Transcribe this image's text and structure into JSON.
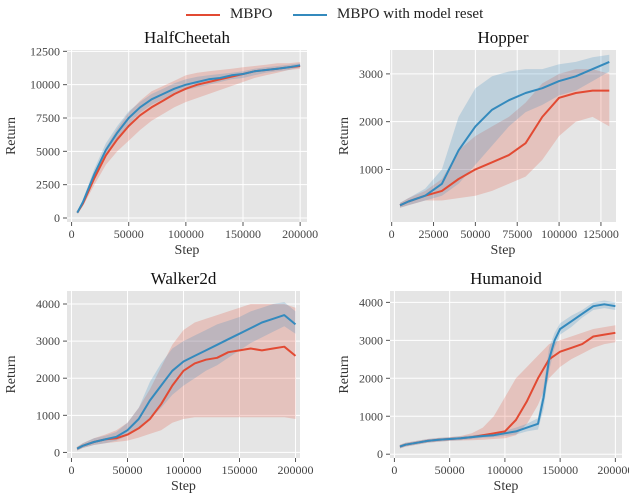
{
  "colors": {
    "MBPO": "#e24a33",
    "MBPO with model reset": "#348abd",
    "panel_bg": "#e5e5e5",
    "grid": "#ffffff"
  },
  "legend": [
    {
      "label": "MBPO",
      "color": "#e24a33"
    },
    {
      "label": "MBPO with model reset",
      "color": "#348abd"
    }
  ],
  "chart_data": [
    {
      "type": "line",
      "title": "HalfCheetah",
      "xlabel": "Step",
      "ylabel": "Return",
      "xlim": [
        -4000,
        206000
      ],
      "ylim": [
        -300,
        12600
      ],
      "xticks": [
        0,
        50000,
        100000,
        150000,
        200000
      ],
      "yticks": [
        0,
        2500,
        5000,
        7500,
        10000,
        12500
      ],
      "grid": true,
      "series": [
        {
          "name": "MBPO",
          "x": [
            5000,
            10000,
            20000,
            30000,
            40000,
            50000,
            60000,
            70000,
            80000,
            90000,
            100000,
            110000,
            120000,
            130000,
            140000,
            150000,
            160000,
            170000,
            180000,
            190000,
            200000
          ],
          "y": [
            400,
            1100,
            3000,
            4700,
            5900,
            6900,
            7700,
            8300,
            8800,
            9300,
            9700,
            10000,
            10200,
            10400,
            10600,
            10800,
            11000,
            11100,
            11200,
            11300,
            11400
          ],
          "lower": [
            300,
            900,
            2500,
            4000,
            5000,
            5800,
            6600,
            7300,
            7800,
            8300,
            8700,
            9000,
            9300,
            9600,
            9900,
            10200,
            10500,
            10700,
            10900,
            11100,
            11200
          ],
          "upper": [
            500,
            1300,
            3400,
            5300,
            6700,
            7900,
            8800,
            9500,
            9900,
            10300,
            10700,
            10900,
            11000,
            11100,
            11200,
            11300,
            11400,
            11500,
            11600,
            11600,
            11700
          ]
        },
        {
          "name": "MBPO with model reset",
          "x": [
            5000,
            10000,
            20000,
            30000,
            40000,
            50000,
            60000,
            70000,
            80000,
            90000,
            100000,
            110000,
            120000,
            130000,
            140000,
            150000,
            160000,
            170000,
            180000,
            190000,
            200000
          ],
          "y": [
            400,
            1200,
            3300,
            5100,
            6400,
            7500,
            8300,
            8900,
            9300,
            9700,
            10000,
            10200,
            10400,
            10500,
            10700,
            10800,
            11000,
            11100,
            11200,
            11300,
            11450
          ],
          "lower": [
            300,
            1000,
            2900,
            4600,
            5900,
            7000,
            7900,
            8500,
            8900,
            9300,
            9600,
            9800,
            10000,
            10200,
            10400,
            10500,
            10700,
            10900,
            11000,
            11100,
            11300
          ],
          "upper": [
            500,
            1400,
            3700,
            5600,
            6900,
            8000,
            8700,
            9300,
            9700,
            10100,
            10400,
            10600,
            10700,
            10800,
            10900,
            11000,
            11200,
            11300,
            11400,
            11500,
            11600
          ]
        }
      ]
    },
    {
      "type": "line",
      "title": "Hopper",
      "xlabel": "Step",
      "ylabel": "Return",
      "xlim": [
        -1000,
        134000
      ],
      "ylim": [
        -100,
        3500
      ],
      "xticks": [
        0,
        25000,
        50000,
        75000,
        100000,
        125000
      ],
      "yticks": [
        1000,
        2000,
        3000
      ],
      "grid": true,
      "series": [
        {
          "name": "MBPO",
          "x": [
            5000,
            10000,
            20000,
            30000,
            40000,
            50000,
            60000,
            70000,
            80000,
            90000,
            100000,
            110000,
            120000,
            130000
          ],
          "y": [
            250,
            330,
            450,
            550,
            800,
            1000,
            1150,
            1300,
            1550,
            2100,
            2500,
            2600,
            2650,
            2650
          ],
          "lower": [
            200,
            250,
            350,
            350,
            400,
            450,
            550,
            700,
            850,
            1200,
            1700,
            2000,
            2100,
            1900
          ],
          "upper": [
            300,
            400,
            550,
            800,
            1400,
            1700,
            1900,
            2100,
            2400,
            2800,
            3000,
            3100,
            3100,
            3000
          ]
        },
        {
          "name": "MBPO with model reset",
          "x": [
            5000,
            10000,
            20000,
            30000,
            40000,
            50000,
            60000,
            70000,
            80000,
            90000,
            100000,
            110000,
            120000,
            130000
          ],
          "y": [
            250,
            330,
            450,
            700,
            1400,
            1900,
            2250,
            2450,
            2600,
            2700,
            2850,
            2950,
            3100,
            3250
          ],
          "lower": [
            200,
            250,
            350,
            450,
            700,
            1100,
            1500,
            1900,
            2200,
            2350,
            2550,
            2650,
            2850,
            3050
          ],
          "upper": [
            300,
            400,
            600,
            1000,
            2100,
            2700,
            2950,
            3050,
            3100,
            3100,
            3200,
            3250,
            3350,
            3400
          ]
        }
      ]
    },
    {
      "type": "line",
      "title": "Walker2d",
      "xlabel": "Step",
      "ylabel": "Return",
      "xlim": [
        -4000,
        204000
      ],
      "ylim": [
        -150,
        4350
      ],
      "xticks": [
        0,
        50000,
        100000,
        150000,
        200000
      ],
      "yticks": [
        0,
        1000,
        2000,
        3000,
        4000
      ],
      "grid": true,
      "series": [
        {
          "name": "MBPO",
          "x": [
            5000,
            10000,
            20000,
            30000,
            40000,
            50000,
            60000,
            70000,
            80000,
            90000,
            100000,
            110000,
            120000,
            130000,
            140000,
            150000,
            160000,
            170000,
            180000,
            190000,
            200000
          ],
          "y": [
            100,
            180,
            280,
            350,
            380,
            480,
            650,
            900,
            1300,
            1800,
            2200,
            2400,
            2500,
            2550,
            2700,
            2750,
            2800,
            2750,
            2800,
            2850,
            2600
          ],
          "lower": [
            50,
            120,
            200,
            250,
            280,
            320,
            400,
            500,
            600,
            800,
            900,
            950,
            950,
            950,
            950,
            950,
            950,
            950,
            950,
            950,
            900
          ],
          "upper": [
            150,
            250,
            380,
            480,
            600,
            800,
            1200,
            1700,
            2300,
            2900,
            3300,
            3500,
            3600,
            3700,
            3800,
            3900,
            4000,
            4000,
            4000,
            4000,
            3900
          ]
        },
        {
          "name": "MBPO with model reset",
          "x": [
            5000,
            10000,
            20000,
            30000,
            40000,
            50000,
            60000,
            70000,
            80000,
            90000,
            100000,
            110000,
            120000,
            130000,
            140000,
            150000,
            160000,
            170000,
            180000,
            190000,
            200000
          ],
          "y": [
            100,
            180,
            280,
            350,
            420,
            600,
            900,
            1400,
            1800,
            2200,
            2450,
            2600,
            2750,
            2900,
            3050,
            3200,
            3350,
            3500,
            3600,
            3700,
            3450
          ],
          "lower": [
            50,
            120,
            200,
            250,
            320,
            450,
            650,
            900,
            1200,
            1550,
            1800,
            2000,
            2200,
            2350,
            2550,
            2750,
            2950,
            3100,
            3250,
            3400,
            3200
          ],
          "upper": [
            150,
            250,
            380,
            450,
            550,
            800,
            1200,
            1900,
            2400,
            2800,
            3000,
            3150,
            3300,
            3450,
            3550,
            3650,
            3800,
            3900,
            4000,
            4050,
            3800
          ]
        }
      ]
    },
    {
      "type": "line",
      "title": "Humanoid",
      "xlabel": "Step",
      "ylabel": "Return",
      "xlim": [
        -4000,
        206000
      ],
      "ylim": [
        -100,
        4300
      ],
      "xticks": [
        0,
        50000,
        100000,
        150000,
        200000
      ],
      "yticks": [
        0,
        1000,
        2000,
        3000,
        4000
      ],
      "grid": true,
      "series": [
        {
          "name": "MBPO",
          "x": [
            5000,
            10000,
            20000,
            30000,
            40000,
            50000,
            60000,
            70000,
            80000,
            90000,
            100000,
            110000,
            120000,
            130000,
            140000,
            150000,
            160000,
            170000,
            180000,
            190000,
            200000
          ],
          "y": [
            200,
            250,
            300,
            350,
            380,
            400,
            420,
            450,
            500,
            550,
            600,
            900,
            1400,
            2000,
            2500,
            2700,
            2800,
            2900,
            3100,
            3150,
            3200
          ],
          "lower": [
            150,
            200,
            250,
            300,
            330,
            350,
            360,
            370,
            380,
            400,
            420,
            500,
            800,
            1300,
            2000,
            2300,
            2500,
            2650,
            2800,
            2900,
            2950
          ],
          "upper": [
            250,
            300,
            350,
            400,
            430,
            450,
            480,
            550,
            700,
            1000,
            1500,
            2000,
            2300,
            2600,
            2900,
            3000,
            3100,
            3200,
            3300,
            3350,
            3400
          ]
        },
        {
          "name": "MBPO with model reset",
          "x": [
            5000,
            10000,
            20000,
            30000,
            40000,
            50000,
            60000,
            70000,
            80000,
            90000,
            100000,
            110000,
            120000,
            130000,
            135000,
            140000,
            145000,
            150000,
            160000,
            170000,
            180000,
            190000,
            200000
          ],
          "y": [
            200,
            250,
            300,
            350,
            380,
            400,
            420,
            450,
            480,
            500,
            550,
            600,
            700,
            800,
            1500,
            2500,
            3000,
            3300,
            3500,
            3700,
            3900,
            3950,
            3900
          ],
          "lower": [
            150,
            200,
            250,
            300,
            330,
            350,
            370,
            400,
            430,
            450,
            480,
            520,
            600,
            650,
            1200,
            2200,
            2800,
            3150,
            3350,
            3600,
            3800,
            3850,
            3800
          ],
          "upper": [
            250,
            300,
            350,
            400,
            430,
            450,
            470,
            500,
            530,
            560,
            620,
            700,
            800,
            950,
            1800,
            2800,
            3200,
            3450,
            3650,
            3800,
            4000,
            4050,
            4000
          ]
        }
      ]
    }
  ]
}
